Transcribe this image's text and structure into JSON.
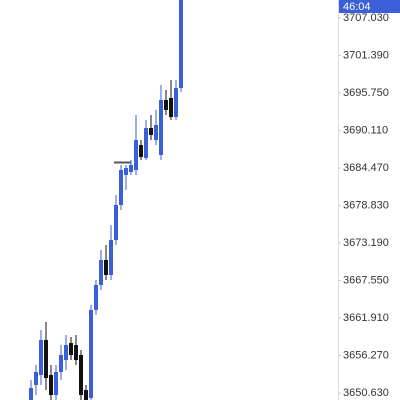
{
  "chart_data": {
    "type": "candlestick",
    "countdown_label": "46:04",
    "open": [
      3649.58,
      3651.84,
      3653.34,
      3658.6,
      3653.34,
      3650.33,
      3653.79,
      3655.6,
      3658.15,
      3657.85,
      3656.35,
      3651.08,
      3649.88,
      3663.13,
      3666.88,
      3670.64,
      3668.38,
      3673.64,
      3678.91,
      3683.42,
      3683.87,
      3684.17,
      3687.93,
      3685.98,
      3690.49,
      3688.68,
      3686.43,
      3694.7,
      3695.0,
      3692.14,
      3696.5
    ],
    "close": [
      3651.39,
      3653.79,
      3658.6,
      3652.89,
      3650.33,
      3653.79,
      3656.35,
      3657.85,
      3656.35,
      3655.6,
      3650.33,
      3649.58,
      3663.13,
      3666.88,
      3670.64,
      3668.38,
      3673.64,
      3678.91,
      3684.17,
      3684.47,
      3684.92,
      3688.68,
      3686.13,
      3690.49,
      3689.44,
      3690.94,
      3694.7,
      3693.2,
      3692.14,
      3696.5,
      3709.74
    ],
    "high": [
      3652.59,
      3654.84,
      3660.11,
      3661.31,
      3654.84,
      3654.84,
      3657.85,
      3659.36,
      3659.06,
      3659.36,
      3657.1,
      3651.84,
      3663.88,
      3667.63,
      3672.14,
      3672.89,
      3675.9,
      3680.41,
      3684.92,
      3684.92,
      3685.68,
      3692.44,
      3688.68,
      3691.69,
      3692.44,
      3693.2,
      3696.96,
      3696.2,
      3697.71,
      3697.71,
      3709.74
    ],
    "low": [
      3649.58,
      3650.33,
      3651.84,
      3651.08,
      3649.58,
      3649.58,
      3652.59,
      3654.09,
      3655.6,
      3654.84,
      3649.58,
      3649.58,
      3649.58,
      3662.38,
      3666.14,
      3667.63,
      3667.63,
      3672.89,
      3678.16,
      3681.16,
      3683.42,
      3683.42,
      3685.68,
      3685.68,
      3688.68,
      3687.93,
      3685.68,
      3692.44,
      3691.69,
      3691.69,
      3695.9
    ],
    "up_color": "#3a5fd9",
    "down_color": "#111111",
    "ylim": [
      3649.58,
      3709.74
    ],
    "yticks": [
      {
        "value": 3707.03,
        "label": "3707.030"
      },
      {
        "value": 3701.39,
        "label": "3701.390"
      },
      {
        "value": 3695.75,
        "label": "3695.750"
      },
      {
        "value": 3690.11,
        "label": "3690.110"
      },
      {
        "value": 3684.47,
        "label": "3684.470"
      },
      {
        "value": 3678.83,
        "label": "3678.830"
      },
      {
        "value": 3673.19,
        "label": "3673.190"
      },
      {
        "value": 3667.55,
        "label": "3667.550"
      },
      {
        "value": 3661.91,
        "label": "3661.910"
      },
      {
        "value": 3656.27,
        "label": "3656.270"
      },
      {
        "value": 3650.63,
        "label": "3650.630"
      }
    ]
  }
}
